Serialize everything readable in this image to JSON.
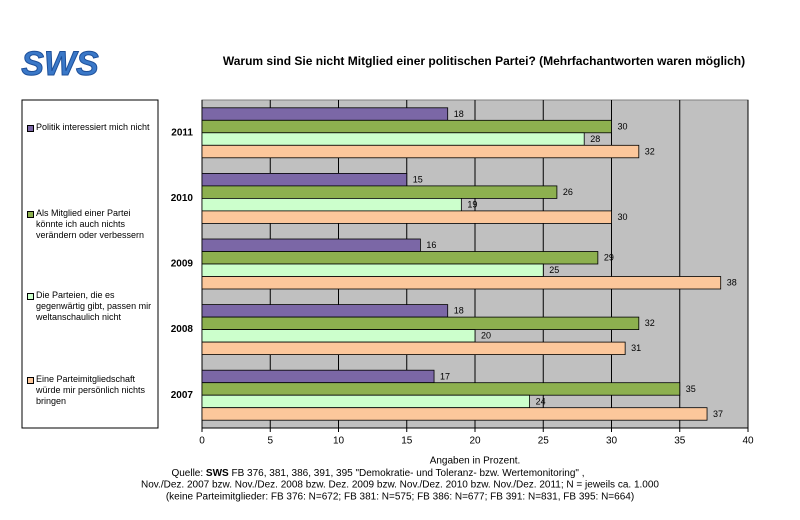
{
  "logo": "SWS",
  "chart_data": {
    "type": "bar",
    "orientation": "horizontal",
    "title": "Warum sind Sie nicht Mitglied einer politischen Partei? (Mehrfachantworten waren möglich)",
    "categories": [
      "2011",
      "2010",
      "2009",
      "2008",
      "2007"
    ],
    "series": [
      {
        "name": "Politik interessiert mich nicht",
        "color": "#7b67a6",
        "values": [
          18,
          15,
          16,
          18,
          17
        ]
      },
      {
        "name": "Als Mitglied einer Partei könnte ich auch nichts verändern oder verbessern",
        "color": "#8db04f",
        "values": [
          30,
          26,
          29,
          32,
          35
        ]
      },
      {
        "name": "Die Parteien, die es gegenwärtig gibt, passen mir weltanschaulich nicht",
        "color": "#ccffcc",
        "values": [
          28,
          19,
          25,
          20,
          24
        ]
      },
      {
        "name": "Eine Parteimitgliedschaft würde mir persönlich nichts bringen",
        "color": "#fcc79b",
        "values": [
          32,
          30,
          38,
          31,
          37
        ]
      }
    ],
    "xlim": [
      0,
      40
    ],
    "xticks": [
      0,
      5,
      10,
      15,
      20,
      25,
      30,
      35,
      40
    ],
    "grid": true,
    "xlabel": "Angaben in Prozent.",
    "source_prefix": "Quelle:",
    "source_brand": "SWS",
    "source_rest": "FB 376, 381, 386, 391, 395 \"Demokratie- und Toleranz- bzw. Wertemonitoring\" ,",
    "source_lines": [
      "Nov./Dez. 2007 bzw. Nov./Dez. 2008 bzw. Dez. 2009 bzw. Nov./Dez. 2010 bzw. Nov./Dez. 2011; N = jeweils ca. 1.000",
      "(keine Parteimitglieder: FB 376: N=672; FB 381: N=575; FB 386: N=677; FB 391: N=831, FB 395: N=664)"
    ]
  }
}
